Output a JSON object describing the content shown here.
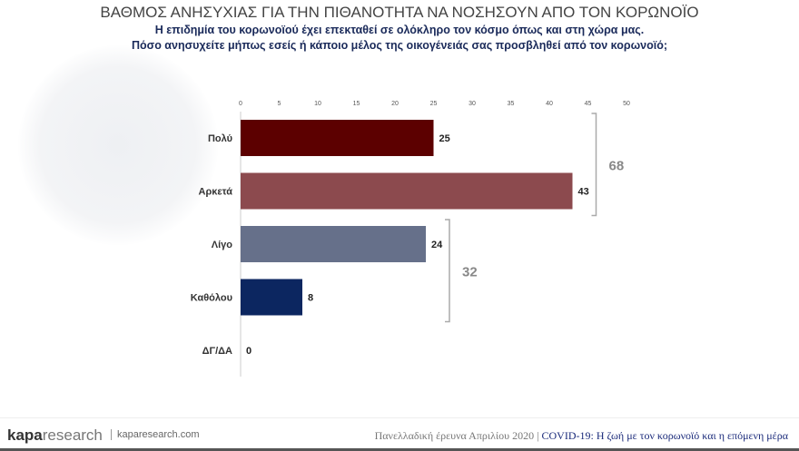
{
  "header": {
    "title": "ΒΑΘΜΟΣ ΑΝΗΣΥΧΙΑΣ ΓΙΑ ΤΗΝ ΠΙΘΑΝΟΤΗΤΑ ΝΑ ΝΟΣΗΣΟΥΝ ΑΠΟ ΤΟΝ ΚΟΡΩΝΟΪΟ",
    "subtitle1": "Η επιδημία του κορωνοϊού έχει επεκταθεί σε ολόκληρο τον κόσμο όπως και στη χώρα μας.",
    "subtitle2": "Πόσο ανησυχείτε μήπως εσείς ή κάποιο μέλος της οικογένειάς σας προσβληθεί από τον κορωνοϊό;"
  },
  "chart_data": {
    "type": "bar",
    "orientation": "horizontal",
    "categories": [
      "Πολύ",
      "Αρκετά",
      "Λίγο",
      "Καθόλου",
      "ΔΓ/ΔΑ"
    ],
    "values": [
      25,
      43,
      24,
      8,
      0
    ],
    "colors": [
      "#5c0000",
      "#8c4a4e",
      "#66708a",
      "#0c2660",
      "#999999"
    ],
    "xlim": [
      0,
      50
    ],
    "xticks": [
      0,
      5,
      10,
      15,
      20,
      25,
      30,
      35,
      40,
      45,
      50
    ],
    "grid": false,
    "groups": [
      {
        "label": "68",
        "categories": [
          "Πολύ",
          "Αρκετά"
        ]
      },
      {
        "label": "32",
        "categories": [
          "Λίγο",
          "Καθόλου"
        ]
      }
    ]
  },
  "footer": {
    "logo_bold": "kapa",
    "logo_rest": "research",
    "site": "kaparesearch.com",
    "survey": "Πανελλαδική έρευνα Απριλίου 2020 |",
    "survey_title": "COVID-19: Η ζωή με τον κορωνοϊό και η επόμενη μέρα"
  }
}
